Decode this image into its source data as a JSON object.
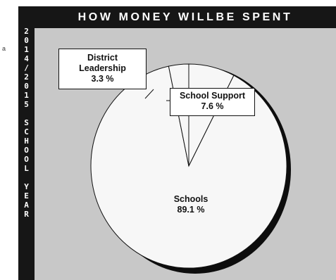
{
  "sidebar": {
    "lines": [
      "2",
      "0",
      "1",
      "4",
      "/",
      "2",
      "0",
      "1",
      "5",
      "",
      "S",
      "C",
      "H",
      "O",
      "O",
      "L",
      "",
      "Y",
      "E",
      "A",
      "R"
    ]
  },
  "stray_mark": "a",
  "chart_data": {
    "type": "pie",
    "title": "HOW MONEY WILLBE SPENT",
    "slices": [
      {
        "name": "School Support",
        "lines": [
          "School Support"
        ],
        "value_label": "7.6 %",
        "value": 7.6
      },
      {
        "name": "Schools",
        "lines": [
          "Schools"
        ],
        "value_label": "89.1 %",
        "value": 89.1
      },
      {
        "name": "District Leadership",
        "lines": [
          "District",
          "Leadership"
        ],
        "value_label": "3.3 %",
        "value": 3.3
      }
    ],
    "colors": {
      "background": "#c8c8c8",
      "frame": "#161616",
      "slice_fill": "#f7f7f7",
      "slice_stroke": "#111111",
      "shadow": "#0d0d0d"
    },
    "legend": "none",
    "grid": false
  }
}
